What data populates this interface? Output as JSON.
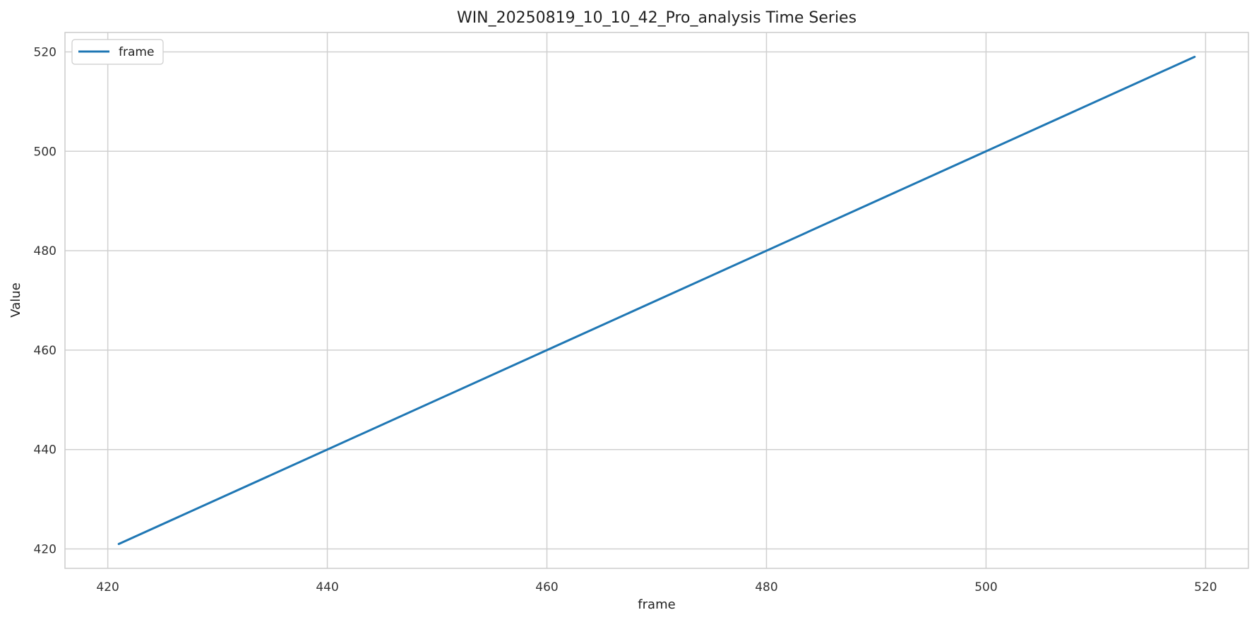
{
  "chart_data": {
    "type": "line",
    "title": "WIN_20250819_10_10_42_Pro_analysis Time Series",
    "xlabel": "frame",
    "ylabel": "Value",
    "xlim": [
      416.1,
      523.9
    ],
    "ylim": [
      416.1,
      523.9
    ],
    "xticks": [
      420,
      440,
      460,
      480,
      500,
      520
    ],
    "yticks": [
      420,
      440,
      460,
      480,
      500,
      520
    ],
    "grid": true,
    "legend_position": "upper-left",
    "series": [
      {
        "name": "frame",
        "color": "#1f77b4",
        "x": [
          421,
          519
        ],
        "y": [
          421,
          519
        ]
      }
    ]
  }
}
